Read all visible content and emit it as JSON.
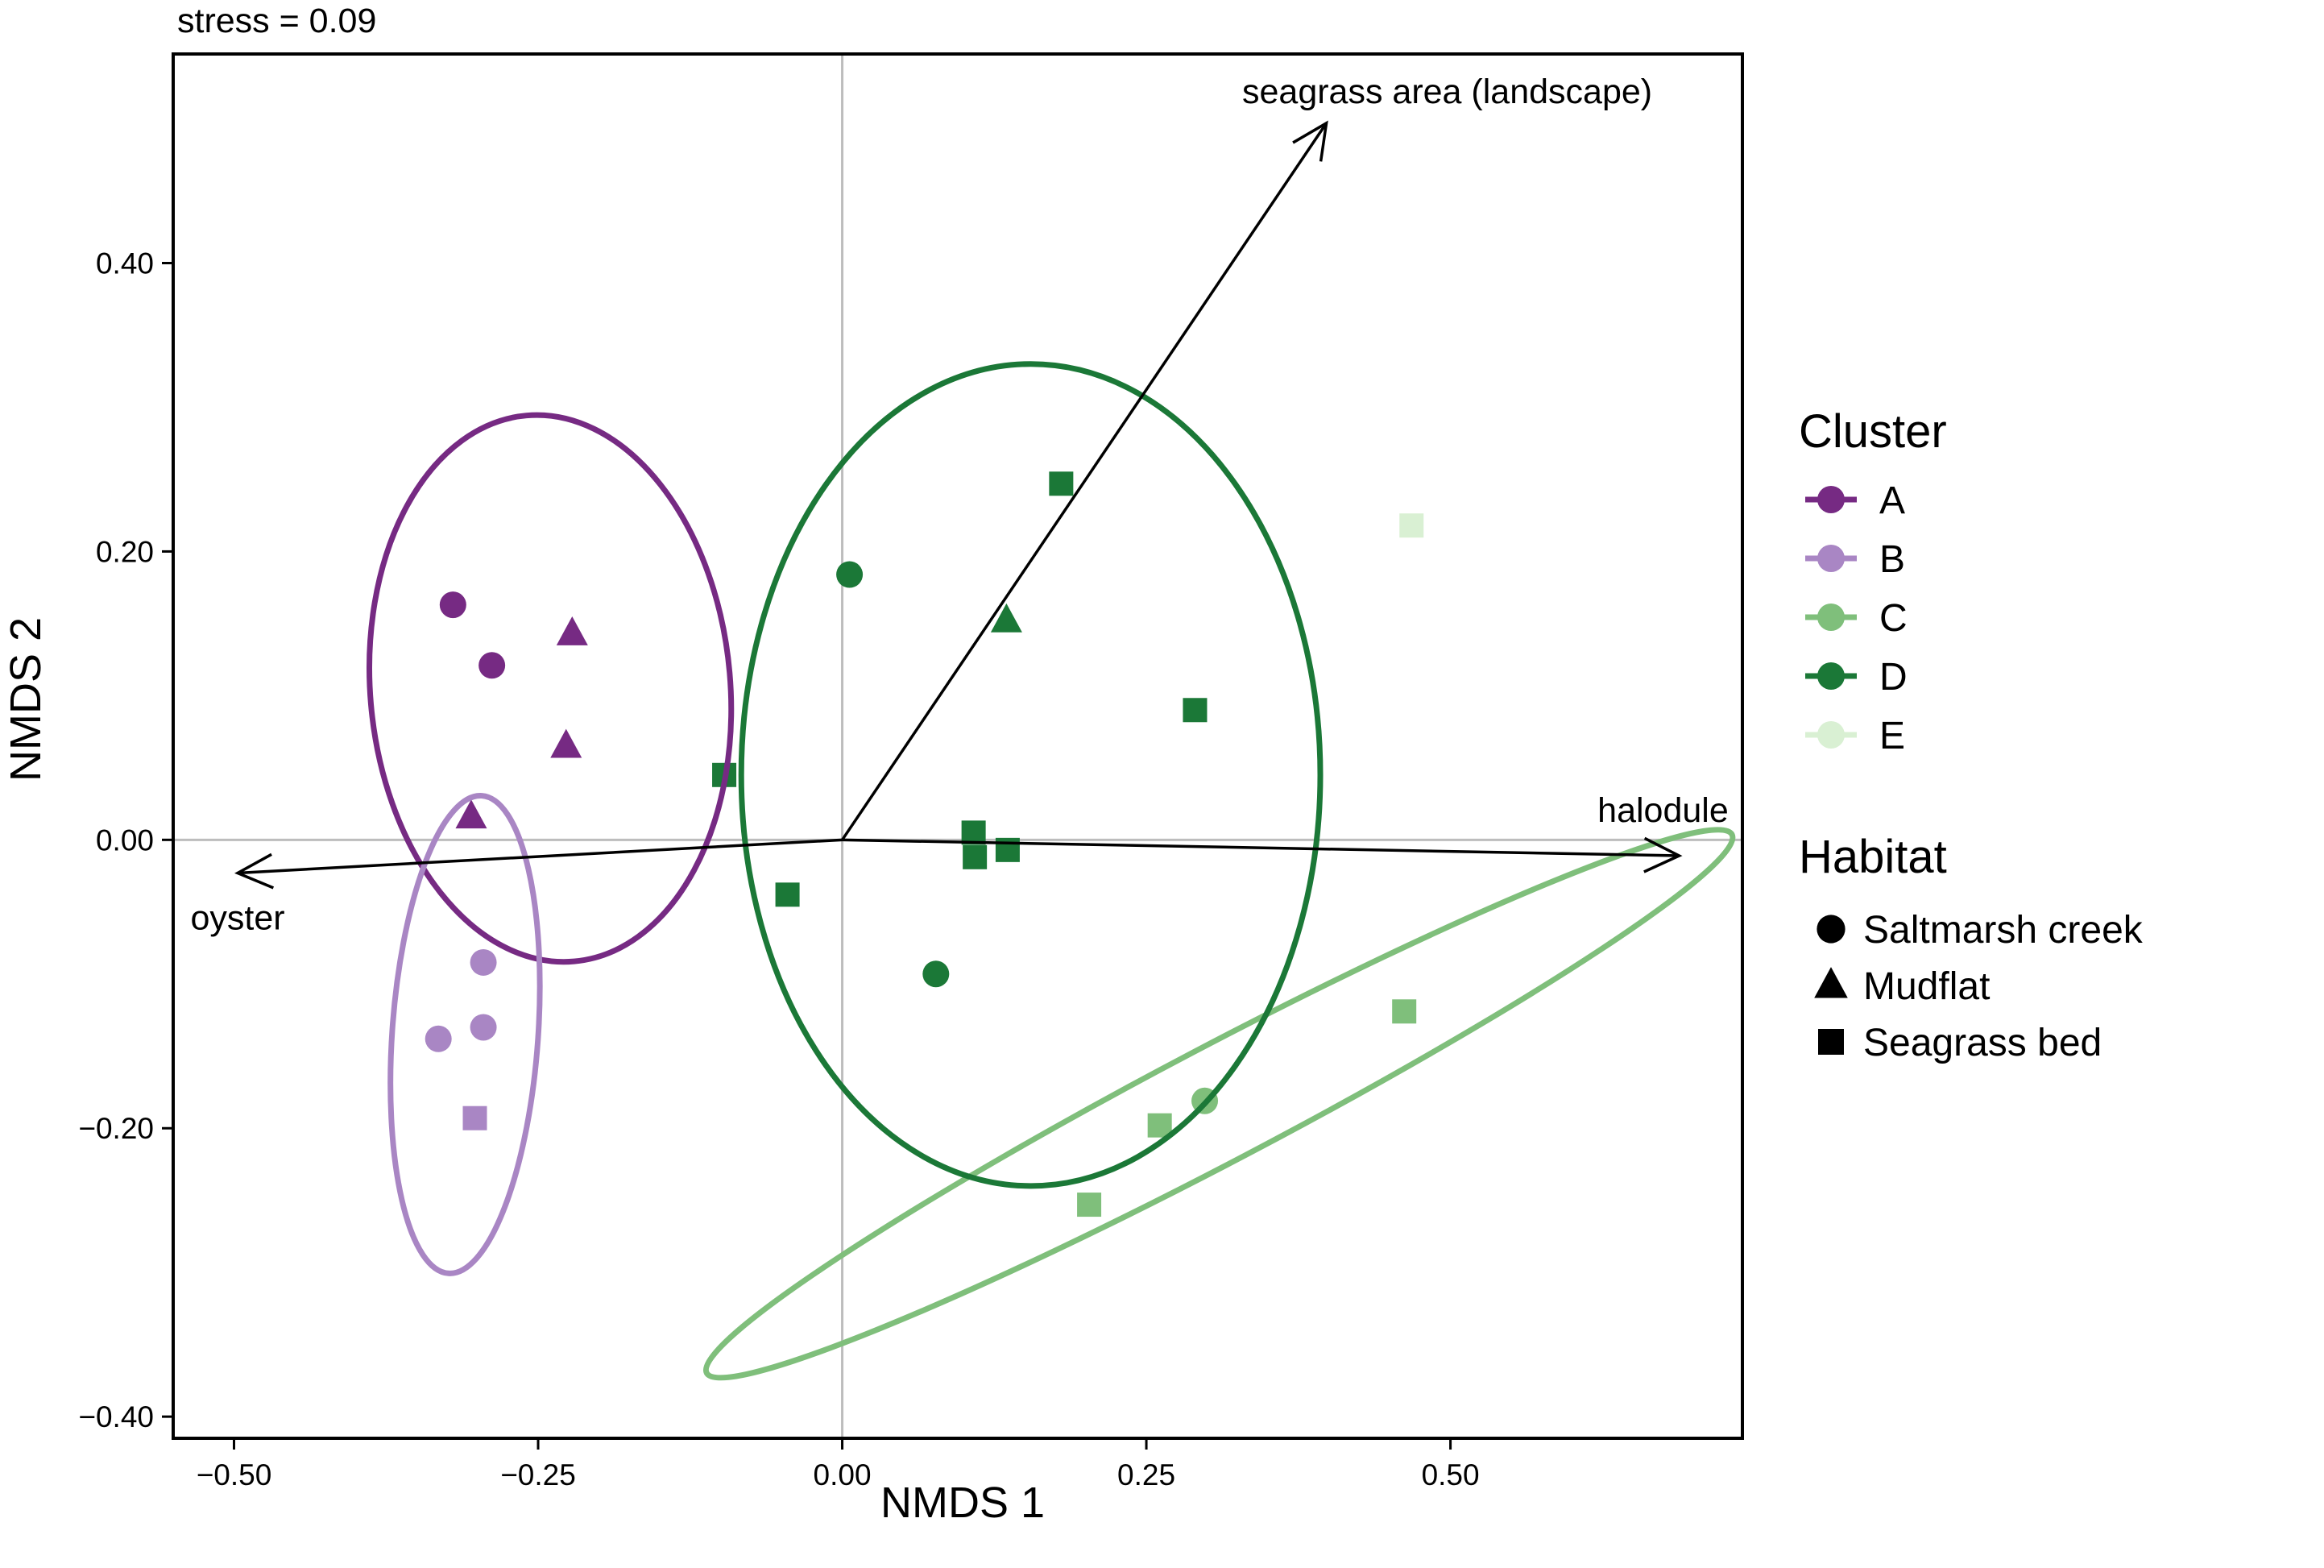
{
  "chart_data": {
    "type": "scatter",
    "annotation": "stress = 0.09",
    "xlabel": "NMDS 1",
    "ylabel": "NMDS 2",
    "xlim": [
      -0.55,
      0.74
    ],
    "ylim": [
      -0.415,
      0.545
    ],
    "xticks": [
      -0.5,
      -0.25,
      0.0,
      0.25,
      0.5
    ],
    "xtick_labels": [
      "−0.50",
      "−0.25",
      "0.00",
      "0.25",
      "0.50"
    ],
    "yticks": [
      -0.4,
      -0.2,
      0.0,
      0.2,
      0.4
    ],
    "ytick_labels": [
      "−0.40",
      "−0.20",
      "0.00",
      "0.20",
      "0.40"
    ],
    "zero_lines": true,
    "grid": false,
    "legend_position": "right",
    "cluster_legend": {
      "title": "Cluster",
      "items": [
        {
          "label": "A",
          "color": "#762a83"
        },
        {
          "label": "B",
          "color": "#a986c4"
        },
        {
          "label": "C",
          "color": "#7fbf7b"
        },
        {
          "label": "D",
          "color": "#1b7837"
        },
        {
          "label": "E",
          "color": "#d9f0d3"
        }
      ]
    },
    "habitat_legend": {
      "title": "Habitat",
      "items": [
        {
          "label": "Saltmarsh creek",
          "shape": "circle"
        },
        {
          "label": "Mudflat",
          "shape": "triangle"
        },
        {
          "label": "Seagrass bed",
          "shape": "square"
        }
      ]
    },
    "points": [
      {
        "x": -0.32,
        "y": 0.163,
        "cluster": "A",
        "shape": "circle"
      },
      {
        "x": -0.288,
        "y": 0.121,
        "cluster": "A",
        "shape": "circle"
      },
      {
        "x": -0.222,
        "y": 0.143,
        "cluster": "A",
        "shape": "triangle"
      },
      {
        "x": -0.227,
        "y": 0.065,
        "cluster": "A",
        "shape": "triangle"
      },
      {
        "x": -0.305,
        "y": 0.016,
        "cluster": "A",
        "shape": "triangle"
      },
      {
        "x": -0.295,
        "y": -0.085,
        "cluster": "B",
        "shape": "circle"
      },
      {
        "x": -0.332,
        "y": -0.138,
        "cluster": "B",
        "shape": "circle"
      },
      {
        "x": -0.295,
        "y": -0.13,
        "cluster": "B",
        "shape": "circle"
      },
      {
        "x": -0.302,
        "y": -0.193,
        "cluster": "B",
        "shape": "square"
      },
      {
        "x": 0.462,
        "y": -0.119,
        "cluster": "C",
        "shape": "square"
      },
      {
        "x": 0.298,
        "y": -0.181,
        "cluster": "C",
        "shape": "circle"
      },
      {
        "x": 0.261,
        "y": -0.198,
        "cluster": "C",
        "shape": "square"
      },
      {
        "x": 0.203,
        "y": -0.253,
        "cluster": "C",
        "shape": "square"
      },
      {
        "x": 0.18,
        "y": 0.247,
        "cluster": "D",
        "shape": "square"
      },
      {
        "x": 0.006,
        "y": 0.184,
        "cluster": "D",
        "shape": "circle"
      },
      {
        "x": 0.135,
        "y": 0.152,
        "cluster": "D",
        "shape": "triangle"
      },
      {
        "x": 0.29,
        "y": 0.09,
        "cluster": "D",
        "shape": "square"
      },
      {
        "x": -0.097,
        "y": 0.045,
        "cluster": "D",
        "shape": "square"
      },
      {
        "x": 0.108,
        "y": 0.005,
        "cluster": "D",
        "shape": "square"
      },
      {
        "x": 0.109,
        "y": -0.012,
        "cluster": "D",
        "shape": "square"
      },
      {
        "x": 0.136,
        "y": -0.007,
        "cluster": "D",
        "shape": "square"
      },
      {
        "x": -0.045,
        "y": -0.038,
        "cluster": "D",
        "shape": "square"
      },
      {
        "x": 0.077,
        "y": -0.093,
        "cluster": "D",
        "shape": "circle"
      },
      {
        "x": 0.468,
        "y": 0.218,
        "cluster": "E",
        "shape": "square"
      }
    ],
    "ellipses": [
      {
        "cluster": "A",
        "cx": -0.24,
        "cy": 0.105,
        "rx": 0.148,
        "ry": 0.19,
        "angle": 5
      },
      {
        "cluster": "B",
        "cx": -0.31,
        "cy": -0.135,
        "rx": 0.06,
        "ry": 0.166,
        "angle": -4
      },
      {
        "cluster": "C",
        "cx": 0.31,
        "cy": -0.183,
        "rx": 0.476,
        "ry": 0.04,
        "angle": 27.7
      },
      {
        "cluster": "D",
        "cx": 0.155,
        "cy": 0.045,
        "rx": 0.238,
        "ry": 0.285,
        "angle": 0
      }
    ],
    "vectors": [
      {
        "label": "seagrass area (landscape)",
        "x": 0.398,
        "y": 0.497
      },
      {
        "label": "halodule",
        "x": 0.688,
        "y": -0.011
      },
      {
        "label": "oyster",
        "x": -0.497,
        "y": -0.023
      }
    ]
  }
}
